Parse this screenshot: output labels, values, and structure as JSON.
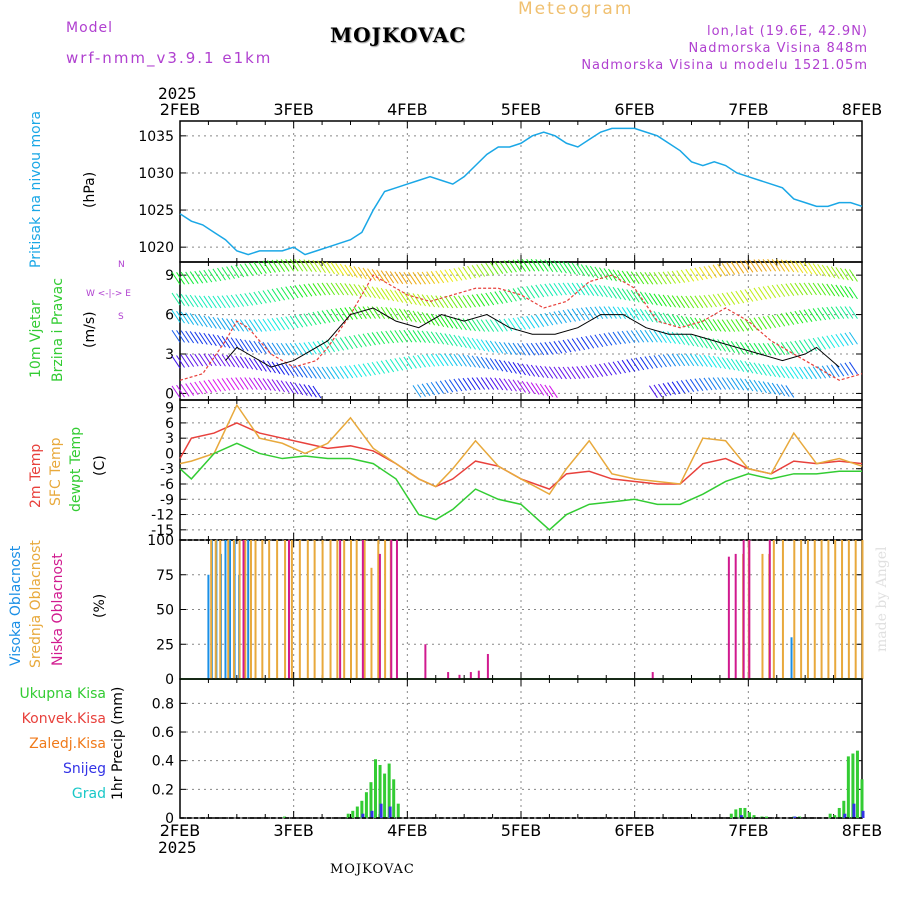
{
  "header": {
    "model_label": "Model",
    "model_name": "wrf-nmm_v3.9.1 e1km",
    "station": "MOJKOVAC",
    "meteogram": "Meteogram",
    "lonlat": "lon,lat (19.6E, 42.9N)",
    "altitude": "Nadmorska Visina 848m",
    "model_altitude": "Nadmorska Visina u modelu 1521.05m",
    "year_top": "2025",
    "year_bottom": "2025",
    "footer_station": "MOJKOVAC",
    "made_by": "made by Angel"
  },
  "colors": {
    "pressure": "#1aa7e6",
    "temp2m": "#e8413c",
    "sfc": "#e8a93c",
    "dew": "#33cc33",
    "high_cloud": "#1a8fe6",
    "mid_cloud": "#e8a93c",
    "low_cloud": "#d11a8f",
    "precip_total": "#33cc33",
    "precip_conv": "#e8413c",
    "precip_frozen": "#f07a1a",
    "snow": "#3333e6",
    "graupel": "#1ac8c8",
    "wind_dir_legend": "#b040d0"
  },
  "panels": {
    "pressure": {
      "label": "Pritisak na nivou mora",
      "unit": "(hPa)"
    },
    "wind": {
      "label1": "10m Vjetar",
      "label2": "Brzina i Pravac",
      "unit": "(m/s)",
      "compass": {
        "n": "N",
        "w": "W",
        "e": "E",
        "s": "S",
        "we": "W <-|-> E"
      }
    },
    "temp": {
      "label1": "2m Temp",
      "label2": "SFC Temp",
      "label3": "dewpt Temp",
      "unit": "(C)"
    },
    "cloud": {
      "label1": "Visoka Oblacnost",
      "label2": "Srednja Oblacnost",
      "label3": "Niska Oblacnost",
      "unit": "(%)"
    },
    "precip": {
      "label": "1hr Precip (mm)",
      "legend": [
        "Ukupna Kisa",
        "Konvek.Kisa",
        "Zaledj.Kisa",
        "Snijeg",
        "Grad"
      ]
    }
  },
  "chart_data": [
    {
      "type": "line",
      "title": "Pritisak na nivou mora",
      "ylabel": "(hPa)",
      "x_ticks": [
        "2FEB",
        "3FEB",
        "4FEB",
        "5FEB",
        "6FEB",
        "7FEB",
        "8FEB"
      ],
      "xlim_days": [
        2,
        8
      ],
      "ylim": [
        1018,
        1037
      ],
      "y_ticks": [
        1020,
        1025,
        1030,
        1035
      ],
      "grid": true,
      "series": [
        {
          "name": "Pritisak na nivou mora",
          "x": [
            2.0,
            2.1,
            2.2,
            2.3,
            2.4,
            2.5,
            2.6,
            2.7,
            2.8,
            2.9,
            3.0,
            3.1,
            3.2,
            3.3,
            3.4,
            3.5,
            3.6,
            3.7,
            3.8,
            3.9,
            4.0,
            4.1,
            4.2,
            4.3,
            4.4,
            4.5,
            4.6,
            4.7,
            4.8,
            4.9,
            5.0,
            5.1,
            5.2,
            5.3,
            5.4,
            5.5,
            5.6,
            5.7,
            5.8,
            5.9,
            6.0,
            6.1,
            6.2,
            6.3,
            6.4,
            6.5,
            6.6,
            6.7,
            6.8,
            6.9,
            7.0,
            7.1,
            7.2,
            7.3,
            7.4,
            7.5,
            7.6,
            7.7,
            7.8,
            7.9,
            8.0
          ],
          "y": [
            1024.5,
            1023.5,
            1023,
            1022,
            1021,
            1019.5,
            1019,
            1019.5,
            1019.5,
            1019.5,
            1020,
            1019,
            1019.5,
            1020,
            1020.5,
            1021,
            1022,
            1025,
            1027.5,
            1028,
            1028.5,
            1029,
            1029.5,
            1029,
            1028.5,
            1029.5,
            1031,
            1032.5,
            1033.5,
            1033.5,
            1034,
            1035,
            1035.5,
            1035,
            1034,
            1033.5,
            1034.5,
            1035.5,
            1036,
            1036,
            1036,
            1035.5,
            1035,
            1034,
            1033,
            1031.5,
            1031,
            1031.5,
            1031,
            1030,
            1029.5,
            1029,
            1028.5,
            1028,
            1026.5,
            1026,
            1025.5,
            1025.5,
            1026,
            1026,
            1025.5
          ]
        }
      ]
    },
    {
      "type": "line",
      "title": "10m Vjetar Brzina i Pravac",
      "ylabel": "(m/s)",
      "x_ticks": [
        "2FEB",
        "3FEB",
        "4FEB",
        "5FEB",
        "6FEB",
        "7FEB",
        "8FEB"
      ],
      "ylim": [
        -0.5,
        10
      ],
      "y_ticks": [
        0,
        3,
        6,
        9
      ],
      "grid": true,
      "series": [
        {
          "name": "gust",
          "x": [
            2.0,
            2.2,
            2.4,
            2.5,
            2.6,
            2.8,
            3.0,
            3.2,
            3.3,
            3.5,
            3.7,
            3.9,
            4.0,
            4.2,
            4.4,
            4.6,
            4.8,
            5.0,
            5.2,
            5.4,
            5.6,
            5.8,
            6.0,
            6.2,
            6.4,
            6.6,
            6.8,
            7.0,
            7.2,
            7.4,
            7.6,
            7.8,
            8.0
          ],
          "y": [
            1,
            1.5,
            4,
            5.5,
            5,
            3,
            2,
            2.5,
            3.5,
            6,
            9,
            8,
            7.5,
            7,
            7.5,
            8,
            8,
            7.5,
            6.5,
            7,
            8.5,
            9,
            8,
            5.5,
            5,
            5.5,
            6.5,
            5.5,
            4,
            3,
            2,
            1,
            1.5
          ]
        },
        {
          "name": "speed",
          "x": [
            2.4,
            2.5,
            2.6,
            2.8,
            3.0,
            3.3,
            3.5,
            3.7,
            3.9,
            4.1,
            4.3,
            4.5,
            4.7,
            4.9,
            5.1,
            5.3,
            5.5,
            5.7,
            5.9,
            6.1,
            6.3,
            6.5,
            6.7,
            6.9,
            7.1,
            7.3,
            7.5,
            7.6,
            7.8
          ],
          "y": [
            2.5,
            3.5,
            3,
            2,
            2.5,
            4,
            6,
            6.5,
            5.5,
            5,
            6,
            5.5,
            6,
            5,
            4.5,
            4.5,
            5,
            6,
            6,
            5,
            4.5,
            4.5,
            4,
            3.5,
            3,
            2.5,
            3,
            3.5,
            2
          ]
        }
      ]
    },
    {
      "type": "line",
      "title": "2m Temp / SFC Temp / dewpt Temp",
      "ylabel": "(C)",
      "x_ticks": [
        "2FEB",
        "3FEB",
        "4FEB",
        "5FEB",
        "6FEB",
        "7FEB",
        "8FEB"
      ],
      "ylim": [
        -17,
        10.5
      ],
      "y_ticks": [
        -15,
        -12,
        -9,
        -6,
        -3,
        0,
        3,
        6,
        9
      ],
      "grid": true,
      "series": [
        {
          "name": "2m Temp",
          "x": [
            2.0,
            2.1,
            2.3,
            2.5,
            2.7,
            2.9,
            3.1,
            3.3,
            3.5,
            3.7,
            3.9,
            4.1,
            4.25,
            4.4,
            4.6,
            4.8,
            5.0,
            5.25,
            5.4,
            5.6,
            5.8,
            6.0,
            6.2,
            6.4,
            6.6,
            6.8,
            7.0,
            7.2,
            7.4,
            7.6,
            7.8,
            8.0
          ],
          "y": [
            -1,
            3,
            4,
            6,
            4,
            3,
            2,
            1,
            1.5,
            0.5,
            -2,
            -5,
            -6.5,
            -5,
            -1.5,
            -2.5,
            -5,
            -7,
            -4,
            -3.5,
            -5,
            -5.5,
            -6,
            -6,
            -2,
            -1,
            -3,
            -4,
            -1.5,
            -2,
            -1.5,
            -2
          ]
        },
        {
          "name": "SFC Temp",
          "x": [
            2.0,
            2.1,
            2.3,
            2.5,
            2.7,
            2.9,
            3.1,
            3.3,
            3.5,
            3.7,
            3.9,
            4.1,
            4.25,
            4.4,
            4.6,
            4.8,
            5.0,
            5.25,
            5.4,
            5.6,
            5.8,
            6.0,
            6.2,
            6.4,
            6.6,
            6.8,
            7.0,
            7.2,
            7.4,
            7.6,
            7.8,
            8.0
          ],
          "y": [
            -2,
            -1.5,
            0,
            9.5,
            3,
            2,
            0,
            2,
            7,
            1,
            -2,
            -5,
            -6.5,
            -3,
            2.5,
            -2.5,
            -5,
            -8,
            -3,
            2.5,
            -4,
            -5,
            -5.5,
            -6,
            3,
            2.5,
            -3,
            -4,
            4,
            -2,
            -1,
            -2.5
          ]
        },
        {
          "name": "dewpt Temp",
          "x": [
            2.0,
            2.1,
            2.3,
            2.5,
            2.7,
            2.9,
            3.1,
            3.3,
            3.5,
            3.7,
            3.9,
            4.1,
            4.25,
            4.4,
            4.6,
            4.8,
            5.0,
            5.25,
            5.4,
            5.6,
            5.8,
            6.0,
            6.2,
            6.4,
            6.6,
            6.8,
            7.0,
            7.2,
            7.4,
            7.6,
            7.8,
            8.0
          ],
          "y": [
            -3,
            -5,
            0,
            2,
            0,
            -1,
            -0.5,
            -1,
            -1,
            -2,
            -5,
            -12,
            -13,
            -11,
            -7,
            -9,
            -10,
            -15,
            -12,
            -10,
            -9.5,
            -9,
            -10,
            -10,
            -8,
            -5.5,
            -4,
            -5,
            -4,
            -4,
            -3.5,
            -3.5
          ]
        }
      ]
    },
    {
      "type": "bar",
      "title": "Visoka / Srednja / Niska Oblacnost",
      "ylabel": "(%)",
      "x_ticks": [
        "2FEB",
        "3FEB",
        "4FEB",
        "5FEB",
        "6FEB",
        "7FEB",
        "8FEB"
      ],
      "ylim": [
        0,
        100
      ],
      "y_ticks": [
        0,
        25,
        50,
        75,
        100
      ],
      "grid": true,
      "series": [
        {
          "name": "Visoka Oblacnost",
          "x": [
            2.25,
            2.28,
            2.32,
            2.36,
            2.4,
            2.44,
            2.48,
            2.52,
            2.56,
            2.6,
            7.38
          ],
          "y": [
            75,
            100,
            100,
            90,
            100,
            100,
            100,
            75,
            100,
            100,
            30
          ]
        },
        {
          "name": "Srednja Oblacnost",
          "x": [
            2.27,
            2.31,
            2.35,
            2.42,
            2.47,
            2.52,
            2.57,
            2.62,
            2.66,
            2.72,
            2.78,
            2.85,
            2.92,
            2.98,
            3.05,
            3.12,
            3.18,
            3.25,
            3.32,
            3.38,
            3.44,
            3.5,
            3.55,
            3.62,
            3.68,
            3.74,
            3.8,
            3.85,
            6.95,
            7.0,
            7.12,
            7.18,
            7.22,
            7.3,
            7.4,
            7.46,
            7.52,
            7.58,
            7.64,
            7.7,
            7.76,
            7.82,
            7.88,
            7.94,
            8.0
          ],
          "y": [
            100,
            100,
            100,
            100,
            100,
            100,
            100,
            100,
            100,
            100,
            100,
            100,
            100,
            100,
            100,
            100,
            100,
            100,
            100,
            100,
            100,
            100,
            100,
            100,
            80,
            100,
            100,
            100,
            90,
            100,
            90,
            90,
            100,
            100,
            100,
            100,
            100,
            100,
            100,
            100,
            100,
            100,
            100,
            100,
            100
          ]
        },
        {
          "name": "Niska Oblacnost",
          "x": [
            2.55,
            2.95,
            3.4,
            3.6,
            3.75,
            3.85,
            3.9,
            4.15,
            4.35,
            4.45,
            4.55,
            4.62,
            4.7,
            6.15,
            6.82,
            6.88,
            6.95,
            7.0,
            7.18
          ],
          "y": [
            100,
            100,
            100,
            100,
            90,
            100,
            100,
            25,
            5,
            3,
            5,
            6,
            18,
            5,
            88,
            90,
            100,
            100,
            100
          ]
        }
      ]
    },
    {
      "type": "bar",
      "title": "1hr Precip",
      "ylabel": "(mm)",
      "x_ticks": [
        "2FEB",
        "3FEB",
        "4FEB",
        "5FEB",
        "6FEB",
        "7FEB",
        "8FEB"
      ],
      "ylim": [
        0,
        0.97
      ],
      "y_ticks": [
        0,
        0.2,
        0.4,
        0.6,
        0.8
      ],
      "grid": true,
      "series": [
        {
          "name": "Ukupna Kisa",
          "x": [
            2.92,
            3.48,
            3.52,
            3.56,
            3.6,
            3.64,
            3.68,
            3.72,
            3.76,
            3.8,
            3.84,
            3.88,
            3.92,
            6.85,
            6.89,
            6.93,
            6.97,
            7.01,
            7.05,
            7.12,
            7.16,
            7.4,
            7.45,
            7.72,
            7.76,
            7.8,
            7.84,
            7.88,
            7.92,
            7.96,
            8.0
          ],
          "y": [
            0.01,
            0.03,
            0.05,
            0.08,
            0.12,
            0.18,
            0.25,
            0.41,
            0.37,
            0.31,
            0.38,
            0.27,
            0.1,
            0.03,
            0.06,
            0.07,
            0.07,
            0.04,
            0.02,
            0.01,
            0.01,
            0.01,
            0.01,
            0.03,
            0.02,
            0.07,
            0.12,
            0.43,
            0.45,
            0.47,
            0.27
          ]
        },
        {
          "name": "Snijeg",
          "x": [
            3.6,
            3.68,
            3.76,
            3.84,
            6.93,
            7.4,
            7.84,
            7.92,
            8.0
          ],
          "y": [
            0.03,
            0.05,
            0.1,
            0.08,
            0.02,
            0.01,
            0.03,
            0.1,
            0.05
          ]
        }
      ]
    }
  ]
}
